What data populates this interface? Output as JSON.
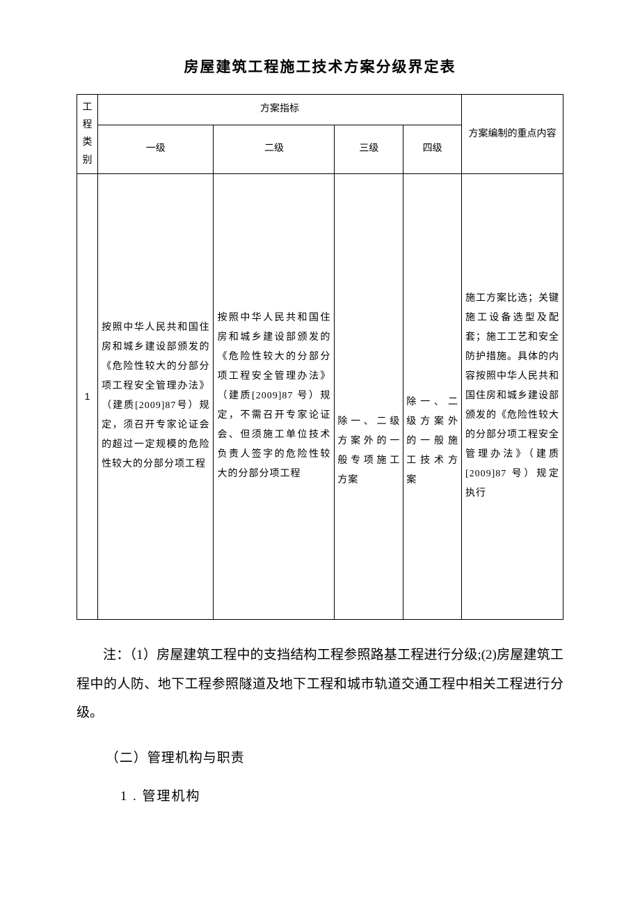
{
  "title": "房屋建筑工程施工技术方案分级界定表",
  "table": {
    "header": {
      "category": "工程类别",
      "plan_indicator": "方案指标",
      "levels": [
        "一级",
        "二级",
        "三级",
        "四级"
      ],
      "key_content": "方案编制的重点内容"
    },
    "row": {
      "num": "1",
      "level1": "按照中华人民共和国住房和城乡建设部颁发的《危险性较大的分部分项工程安全管理办法》（建质[2009]87号）规定，须召开专家论证会的超过一定规模的危险性较大的分部分项工程",
      "level2": "按照中华人民共和国住房和城乡建设部颁发的《危险性较大的分部分项工程安全管理办法》（建质[2009]87 号）规定，不需召开专家论证会、但须施工单位技术负责人签字的危险性较大的分部分项工程",
      "level3": "除一、二级方案外的一般专项施工方案",
      "level4": "除一、二级方案外的一般施工技术方案",
      "key_content": "施工方案比选；关键施工设备选型及配套；施工工艺和安全防护措施。具体的内容按照中华人民共和国住房和城乡建设部颁发的《危险性较大的分部分项工程安全管理办法》（建质[2009]87 号）规定执行"
    }
  },
  "note": "注：（1）房屋建筑工程中的支挡结构工程参照路基工程进行分级;(2)房屋建筑工程中的人防、地下工程参照隧道及地下工程和城市轨道交通工程中相关工程进行分级。",
  "section2": "（二）管理机构与职责",
  "sub1": "1 . 管理机构"
}
